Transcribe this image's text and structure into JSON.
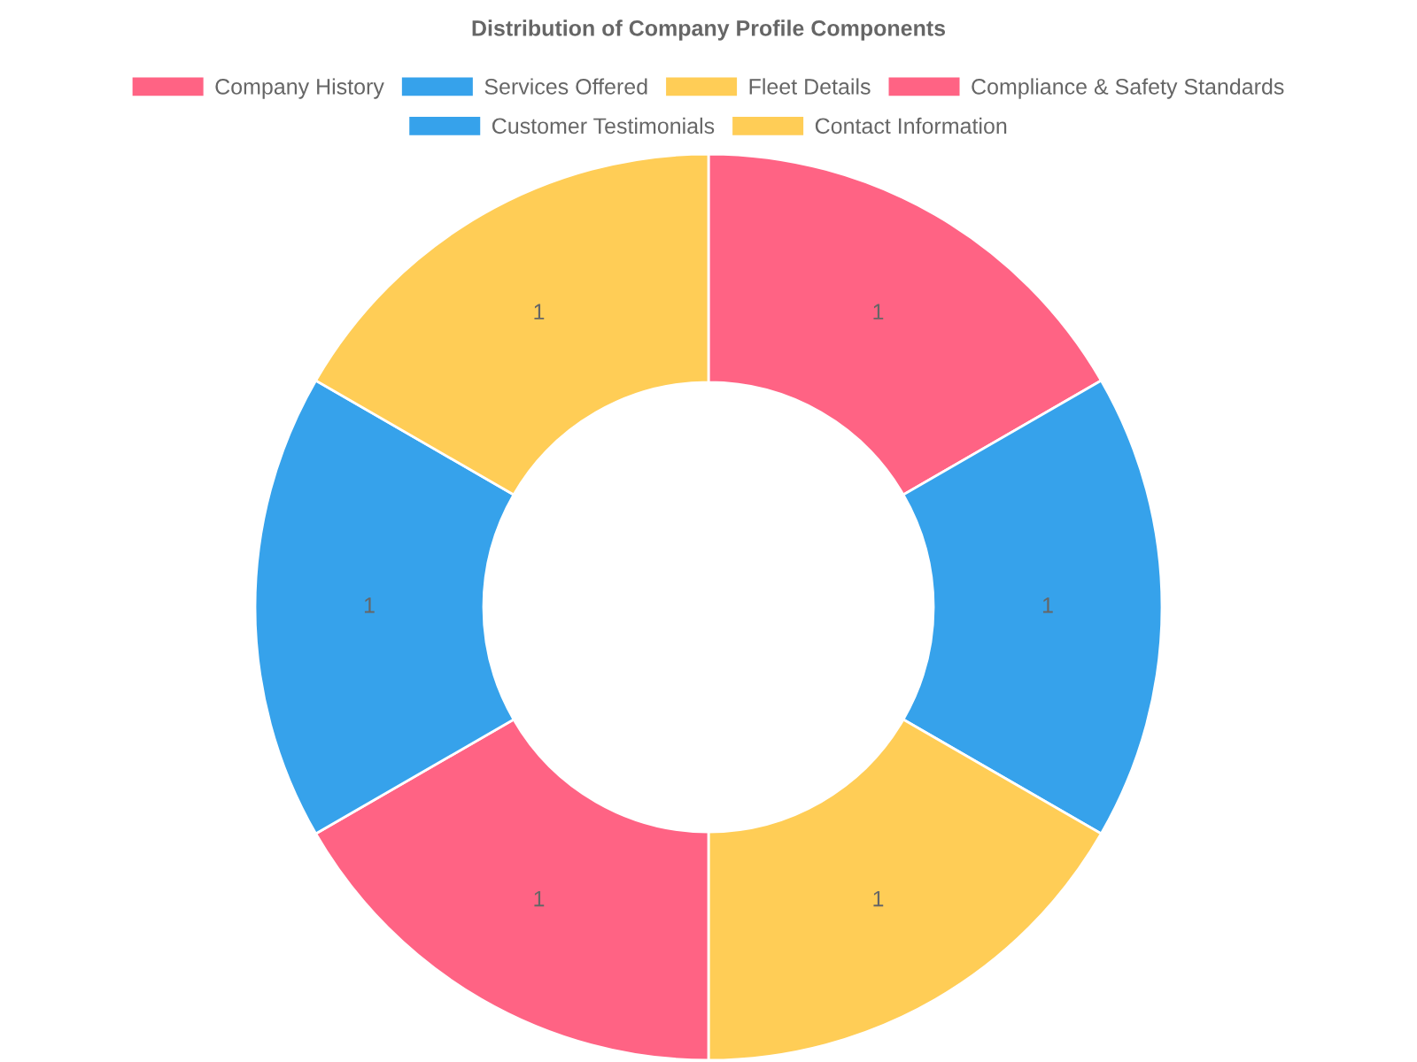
{
  "chart_data": {
    "type": "donut",
    "title": "Distribution of Company Profile Components",
    "categories": [
      "Company History",
      "Services Offered",
      "Fleet Details",
      "Compliance & Safety Standards",
      "Customer Testimonials",
      "Contact Information"
    ],
    "values": [
      1,
      1,
      1,
      1,
      1,
      1
    ],
    "colors": [
      "#ff6384",
      "#36a2eb",
      "#ffcd56",
      "#ff6384",
      "#36a2eb",
      "#ffcd56"
    ],
    "data_labels": true,
    "legend": "top"
  }
}
